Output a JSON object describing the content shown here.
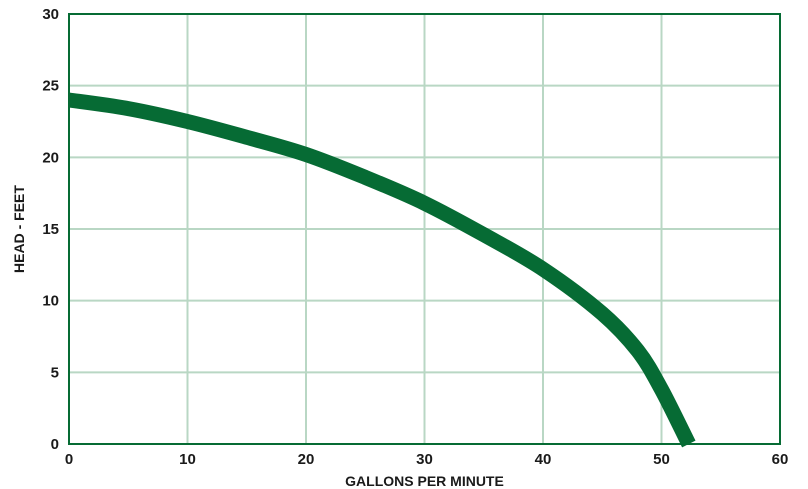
{
  "colors": {
    "curve": "#066b34",
    "frame": "#066b34",
    "grid": "#b9d7c4",
    "text": "#1a1a1a"
  },
  "chart_data": {
    "type": "line",
    "title": "",
    "xlabel": "GALLONS PER MINUTE",
    "ylabel": "HEAD - FEET",
    "xlim": [
      0,
      60
    ],
    "ylim": [
      0,
      30
    ],
    "x_ticks": [
      0,
      10,
      20,
      30,
      40,
      50,
      60
    ],
    "y_ticks": [
      0,
      5,
      10,
      15,
      20,
      25,
      30
    ],
    "grid": true,
    "legend": "none",
    "series": [
      {
        "x": [
          0,
          5,
          10,
          15,
          20,
          25,
          30,
          35,
          40,
          45,
          48,
          50,
          52.3
        ],
        "y": [
          24,
          23.4,
          22.5,
          21.4,
          20.2,
          18.6,
          16.8,
          14.6,
          12.2,
          9.1,
          6.5,
          3.8,
          0
        ]
      }
    ]
  }
}
